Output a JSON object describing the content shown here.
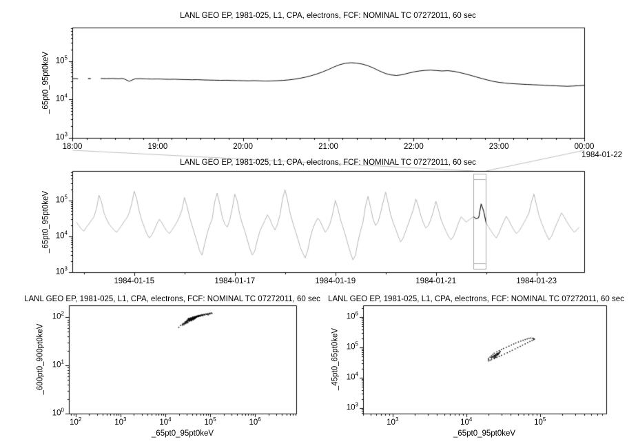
{
  "window": {
    "background": "#ffffff"
  },
  "colors": {
    "background": "#ffffff",
    "frame": "#000000",
    "text": "#000000",
    "series": "#000000",
    "context_series": "#b4b4b4",
    "selection": "#a8a8a8",
    "connector": "#bdbdbd"
  },
  "chart_data": [
    {
      "id": "top",
      "type": "line",
      "title": "LANL GEO EP, 1981-025, L1, CPA, electrons, FCF: NOMINAL TC 07272011, 60 sec",
      "ylabel": "_65pt0_95pt0keV",
      "xlabel": "",
      "annotation": "1984-01-22",
      "x_axis": {
        "unit": "time of day 1984-01-21 18:00 to 1984-01-22 00:00",
        "lim_minutes": [
          0,
          360
        ],
        "tick_minutes": [
          0,
          60,
          120,
          180,
          240,
          300,
          360
        ],
        "tick_labels": [
          "18:00",
          "19:00",
          "20:00",
          "21:00",
          "22:00",
          "23:00",
          "00:00"
        ],
        "minor_step_minutes": 10
      },
      "y_axis": {
        "scale": "log",
        "tick_exponents": [
          3,
          4,
          5
        ],
        "lim_log10": [
          3,
          5.87
        ]
      },
      "series": {
        "name": "_65pt0_95pt0keV",
        "t0_minutes": 0,
        "dt_minutes": 4,
        "value_scale": 1000,
        "values": [
          35.0,
          34.7,
          null,
          34.9,
          null,
          35.1,
          34.8,
          35.0,
          34.6,
          34.9,
          29.5,
          34.4,
          34.6,
          34.2,
          33.9,
          34.1,
          33.7,
          33.4,
          33.6,
          33.1,
          32.8,
          32.5,
          32.7,
          32.2,
          31.9,
          31.7,
          31.4,
          31.6,
          31.2,
          30.9,
          30.7,
          30.5,
          30.8,
          30.4,
          30.1,
          30.3,
          30.7,
          31.3,
          32.2,
          33.6,
          35.5,
          38.0,
          41.5,
          46.0,
          52.0,
          60.0,
          70.0,
          80.0,
          87.5,
          90.0,
          88.0,
          83.0,
          75.0,
          65.0,
          55.0,
          47.5,
          43.5,
          42.0,
          44.0,
          48.0,
          52.0,
          55.0,
          57.0,
          58.0,
          56.5,
          55.0,
          56.0,
          54.0,
          50.5,
          46.5,
          42.5,
          38.5,
          35.0,
          32.0,
          29.5,
          27.8,
          26.8,
          26.0,
          25.4,
          24.9,
          24.5,
          24.1,
          23.8,
          23.4,
          23.0,
          22.6,
          22.3,
          22.0,
          22.3,
          22.8,
          23.3
        ]
      }
    },
    {
      "id": "middle",
      "type": "line",
      "title": "LANL GEO EP, 1981-025, L1, CPA, electrons, FCF: NOMINAL TC 07272011, 60 sec",
      "ylabel": "_65pt0_95pt0keV",
      "xlabel": "",
      "x_axis": {
        "unit": "day of 1984-01",
        "lim_days": [
          13.77,
          23.95
        ],
        "tick_days": [
          15,
          17,
          19,
          21,
          23
        ],
        "tick_labels": [
          "1984-01-15",
          "1984-01-17",
          "1984-01-19",
          "1984-01-21",
          "1984-01-23"
        ],
        "minor_days": [
          14,
          16,
          18,
          20,
          22
        ]
      },
      "y_axis": {
        "scale": "log",
        "tick_exponents": [
          3,
          4,
          5
        ],
        "lim_log10": [
          3,
          5.82
        ]
      },
      "highlight_days": [
        21.75,
        22.0
      ],
      "selection_box_days": [
        21.75,
        22.0
      ],
      "series": {
        "name": "_65pt0_95pt0keV",
        "t0_day": 13.85,
        "dt_day": 0.05,
        "value_scale": 1000,
        "values": [
          25,
          20,
          16,
          14,
          18,
          22,
          28,
          35,
          60,
          140,
          90,
          45,
          30,
          22,
          18,
          15,
          13,
          16,
          20,
          26,
          32,
          45,
          80,
          180,
          110,
          50,
          28,
          18,
          12,
          9,
          11,
          15,
          22,
          30,
          24,
          18,
          14,
          12,
          15,
          19,
          25,
          35,
          55,
          120,
          70,
          35,
          20,
          12,
          7,
          4,
          3,
          6,
          12,
          20,
          30,
          90,
          160,
          80,
          35,
          22,
          18,
          28,
          60,
          150,
          95,
          40,
          22,
          14,
          8,
          4.5,
          3,
          4,
          8,
          14,
          20,
          28,
          40,
          30,
          20,
          15,
          22,
          40,
          110,
          200,
          100,
          45,
          25,
          15,
          9,
          5,
          3.5,
          2.5,
          4,
          9,
          16,
          24,
          32,
          26,
          18,
          13,
          16,
          24,
          45,
          100,
          60,
          30,
          18,
          11,
          6,
          3.5,
          2.2,
          3,
          7,
          14,
          25,
          70,
          130,
          65,
          30,
          20,
          25,
          45,
          90,
          170,
          85,
          40,
          24,
          16,
          10,
          7,
          9,
          14,
          22,
          35,
          55,
          110,
          70,
          38,
          24,
          17,
          20,
          30,
          50,
          95,
          55,
          30,
          20,
          14,
          10,
          8,
          10,
          15,
          24,
          35,
          30,
          25,
          28,
          32,
          35,
          31,
          33,
          80,
          50,
          23,
          18,
          14,
          11,
          9,
          12,
          18,
          26,
          36,
          28,
          20,
          15,
          12,
          14,
          18,
          24,
          32,
          45,
          90,
          150,
          75,
          38,
          24,
          16,
          11,
          8,
          10,
          15,
          22,
          32,
          45,
          35,
          26,
          20,
          16,
          13,
          15,
          18
        ]
      }
    },
    {
      "id": "bottom_left",
      "type": "scatter",
      "title": "LANL GEO EP, 1981-025, L1, CPA, electrons, FCF: NOMINAL TC 07272011, 60 sec",
      "xlabel": "_65pt0_95pt0keV",
      "ylabel": "_600pt0_900pt0keV",
      "x_axis": {
        "scale": "log",
        "tick_exponents": [
          2,
          3,
          4,
          5,
          6
        ],
        "lim_log10": [
          1.85,
          6.92
        ]
      },
      "y_axis": {
        "scale": "log",
        "tick_exponents": [
          0,
          1,
          2
        ],
        "lim_log10": [
          0,
          2.25
        ]
      },
      "point_scale": [
        1000,
        1
      ],
      "points": [
        [
          20,
          62
        ],
        [
          22,
          68
        ],
        [
          24,
          72
        ],
        [
          25,
          75
        ],
        [
          26,
          70
        ],
        [
          27,
          78
        ],
        [
          28,
          74
        ],
        [
          28,
          82
        ],
        [
          29,
          79
        ],
        [
          30,
          85
        ],
        [
          30,
          76
        ],
        [
          31,
          88
        ],
        [
          31,
          81
        ],
        [
          32,
          92
        ],
        [
          32,
          84
        ],
        [
          33,
          87
        ],
        [
          33,
          95
        ],
        [
          34,
          90
        ],
        [
          34,
          83
        ],
        [
          35,
          96
        ],
        [
          35,
          89
        ],
        [
          36,
          93
        ],
        [
          36,
          86
        ],
        [
          37,
          98
        ],
        [
          37,
          91
        ],
        [
          38,
          94
        ],
        [
          38,
          88
        ],
        [
          39,
          97
        ],
        [
          39,
          92
        ],
        [
          40,
          99
        ],
        [
          40,
          90
        ],
        [
          41,
          95
        ],
        [
          41,
          102
        ],
        [
          42,
          97
        ],
        [
          42,
          93
        ],
        [
          43,
          100
        ],
        [
          43,
          96
        ],
        [
          44,
          103
        ],
        [
          44,
          98
        ],
        [
          45,
          101
        ],
        [
          45,
          94
        ],
        [
          46,
          104
        ],
        [
          46,
          99
        ],
        [
          47,
          102
        ],
        [
          48,
          105
        ],
        [
          48,
          100
        ],
        [
          49,
          103
        ],
        [
          50,
          106
        ],
        [
          50,
          101
        ],
        [
          52,
          104
        ],
        [
          52,
          108
        ],
        [
          54,
          106
        ],
        [
          55,
          110
        ],
        [
          56,
          107
        ],
        [
          58,
          109
        ],
        [
          60,
          112
        ],
        [
          62,
          108
        ],
        [
          64,
          111
        ],
        [
          66,
          114
        ],
        [
          68,
          110
        ],
        [
          70,
          113
        ],
        [
          73,
          116
        ],
        [
          76,
          112
        ],
        [
          80,
          118
        ],
        [
          84,
          115
        ],
        [
          88,
          120
        ],
        [
          92,
          117
        ],
        [
          96,
          122
        ],
        [
          100,
          119
        ],
        [
          105,
          124
        ],
        [
          110,
          121
        ],
        [
          30,
          80
        ],
        [
          32,
          78
        ],
        [
          34,
          86
        ],
        [
          36,
          90
        ],
        [
          38,
          85
        ],
        [
          40,
          94
        ],
        [
          42,
          89
        ],
        [
          44,
          92
        ],
        [
          46,
          96
        ],
        [
          28,
          77
        ],
        [
          26,
          73
        ],
        [
          24,
          69
        ],
        [
          33,
          91
        ],
        [
          35,
          85
        ],
        [
          37,
          95
        ],
        [
          39,
          89
        ],
        [
          41,
          98
        ],
        [
          43,
          94
        ],
        [
          45,
          99
        ],
        [
          47,
          97
        ],
        [
          49,
          101
        ],
        [
          51,
          105
        ],
        [
          53,
          103
        ],
        [
          57,
          108
        ],
        [
          61,
          106
        ],
        [
          65,
          112
        ],
        [
          69,
          109
        ],
        [
          75,
          114
        ],
        [
          82,
          117
        ],
        [
          90,
          113
        ],
        [
          98,
          118
        ],
        [
          31,
          84
        ],
        [
          29,
          81
        ],
        [
          27,
          75
        ],
        [
          34,
          93
        ],
        [
          38,
          91
        ],
        [
          42,
          95
        ],
        [
          48,
          98
        ],
        [
          56,
          104
        ]
      ]
    },
    {
      "id": "bottom_right",
      "type": "scatter",
      "title": "LANL GEO EP, 1981-025, L1, CPA, electrons, FCF: NOMINAL TC 07272011, 60 sec",
      "xlabel": "_65pt0_95pt0keV",
      "ylabel": "_45pt0_65pt0keV",
      "x_axis": {
        "scale": "log",
        "tick_exponents": [
          3,
          4,
          5
        ],
        "lim_log10": [
          2.6,
          5.9
        ]
      },
      "y_axis": {
        "scale": "log",
        "tick_exponents": [
          3,
          4,
          5,
          6
        ],
        "lim_log10": [
          2.82,
          6.39
        ]
      },
      "point_scale": [
        1000,
        1000
      ],
      "points": [
        [
          20,
          36
        ],
        [
          21,
          38
        ],
        [
          22,
          40
        ],
        [
          24,
          43
        ],
        [
          26,
          47
        ],
        [
          28,
          51
        ],
        [
          30,
          55
        ],
        [
          33,
          61
        ],
        [
          36,
          67
        ],
        [
          39,
          74
        ],
        [
          42,
          81
        ],
        [
          46,
          90
        ],
        [
          50,
          99
        ],
        [
          54,
          109
        ],
        [
          58,
          120
        ],
        [
          63,
          132
        ],
        [
          68,
          145
        ],
        [
          73,
          158
        ],
        [
          78,
          170
        ],
        [
          82,
          180
        ],
        [
          84,
          190
        ],
        [
          82,
          198
        ],
        [
          79,
          203
        ],
        [
          75,
          205
        ],
        [
          71,
          200
        ],
        [
          67,
          192
        ],
        [
          63,
          183
        ],
        [
          59,
          173
        ],
        [
          55,
          163
        ],
        [
          51,
          152
        ],
        [
          47,
          141
        ],
        [
          44,
          131
        ],
        [
          41,
          121
        ],
        [
          38,
          111
        ],
        [
          35,
          102
        ],
        [
          32,
          93
        ],
        [
          30,
          86
        ],
        [
          28,
          79
        ],
        [
          26,
          72
        ],
        [
          24,
          65
        ],
        [
          23,
          59
        ],
        [
          22,
          53
        ],
        [
          21,
          48
        ],
        [
          20,
          44
        ],
        [
          20,
          40
        ],
        [
          22,
          48
        ],
        [
          23,
          52
        ],
        [
          24,
          55
        ],
        [
          25,
          58
        ],
        [
          24,
          51
        ],
        [
          23,
          47
        ],
        [
          25,
          54
        ],
        [
          26,
          59
        ],
        [
          27,
          62
        ],
        [
          26,
          56
        ],
        [
          25,
          50
        ],
        [
          24,
          53
        ],
        [
          23,
          49
        ],
        [
          26,
          61
        ],
        [
          27,
          65
        ],
        [
          28,
          68
        ],
        [
          27,
          60
        ],
        [
          25,
          57
        ],
        [
          24,
          48
        ],
        [
          22,
          45
        ],
        [
          23,
          51
        ],
        [
          25,
          55
        ],
        [
          26,
          63
        ],
        [
          28,
          70
        ],
        [
          29,
          73
        ],
        [
          28,
          64
        ],
        [
          27,
          58
        ],
        [
          26,
          52
        ],
        [
          25,
          47
        ],
        [
          24,
          44
        ]
      ]
    }
  ]
}
